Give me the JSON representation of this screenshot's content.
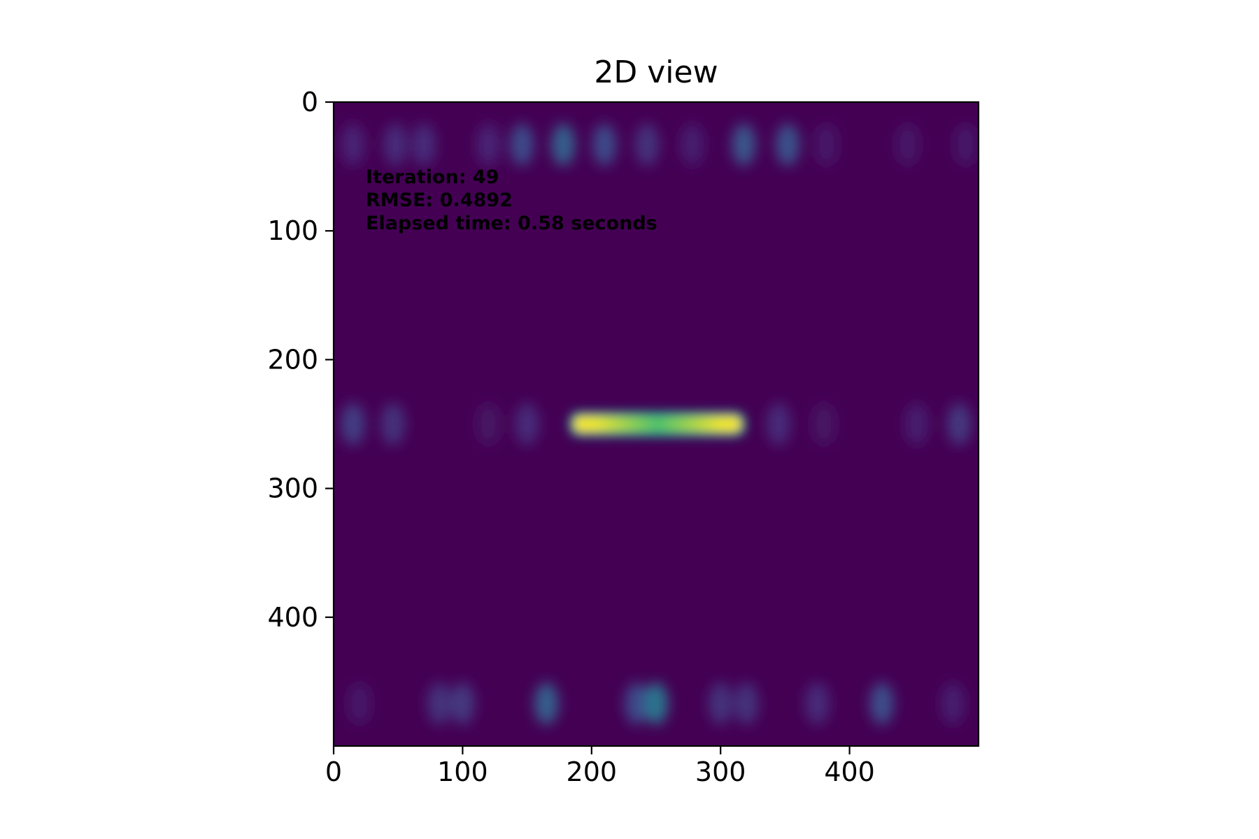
{
  "chart_data": {
    "type": "heatmap",
    "title": "2D view",
    "xlabel": "",
    "ylabel": "",
    "xlim": [
      0,
      500
    ],
    "ylim": [
      500,
      0
    ],
    "y_axis_inverted": true,
    "x_ticks": [
      0,
      100,
      200,
      300,
      400
    ],
    "y_ticks": [
      0,
      100,
      200,
      300,
      400
    ],
    "colormap": "viridis",
    "value_range": [
      0,
      1
    ],
    "background_color": "#440154",
    "grid": false,
    "annotation": {
      "iteration": "Iteration: 49",
      "rmse": "RMSE: 0.4892",
      "elapsed": "Elapsed time: 0.58 seconds"
    },
    "bands": [
      {
        "name": "top",
        "y": 33,
        "blobs": [
          {
            "x": 15,
            "value": 0.1
          },
          {
            "x": 48,
            "value": 0.12
          },
          {
            "x": 70,
            "value": 0.12
          },
          {
            "x": 120,
            "value": 0.1
          },
          {
            "x": 146,
            "value": 0.22
          },
          {
            "x": 178,
            "value": 0.3
          },
          {
            "x": 210,
            "value": 0.22
          },
          {
            "x": 243,
            "value": 0.14
          },
          {
            "x": 278,
            "value": 0.08
          },
          {
            "x": 318,
            "value": 0.26
          },
          {
            "x": 352,
            "value": 0.25
          },
          {
            "x": 382,
            "value": 0.06
          },
          {
            "x": 445,
            "value": 0.06
          },
          {
            "x": 490,
            "value": 0.06
          }
        ]
      },
      {
        "name": "middle",
        "y": 250,
        "blobs": [
          {
            "x": 15,
            "value": 0.18
          },
          {
            "x": 46,
            "value": 0.14
          },
          {
            "x": 120,
            "value": 0.05
          },
          {
            "x": 150,
            "value": 0.12
          },
          {
            "x": 345,
            "value": 0.12
          },
          {
            "x": 380,
            "value": 0.05
          },
          {
            "x": 452,
            "value": 0.08
          },
          {
            "x": 485,
            "value": 0.16
          }
        ],
        "bar": {
          "x_start": 182,
          "x_end": 320,
          "end_value": 1.0,
          "center_value": 0.72
        }
      },
      {
        "name": "bottom",
        "y": 467,
        "blobs": [
          {
            "x": 20,
            "value": 0.06
          },
          {
            "x": 82,
            "value": 0.14
          },
          {
            "x": 100,
            "value": 0.16
          },
          {
            "x": 165,
            "value": 0.3
          },
          {
            "x": 235,
            "value": 0.22
          },
          {
            "x": 250,
            "value": 0.38
          },
          {
            "x": 300,
            "value": 0.14
          },
          {
            "x": 320,
            "value": 0.14
          },
          {
            "x": 375,
            "value": 0.12
          },
          {
            "x": 425,
            "value": 0.24
          },
          {
            "x": 480,
            "value": 0.08
          }
        ]
      }
    ]
  }
}
